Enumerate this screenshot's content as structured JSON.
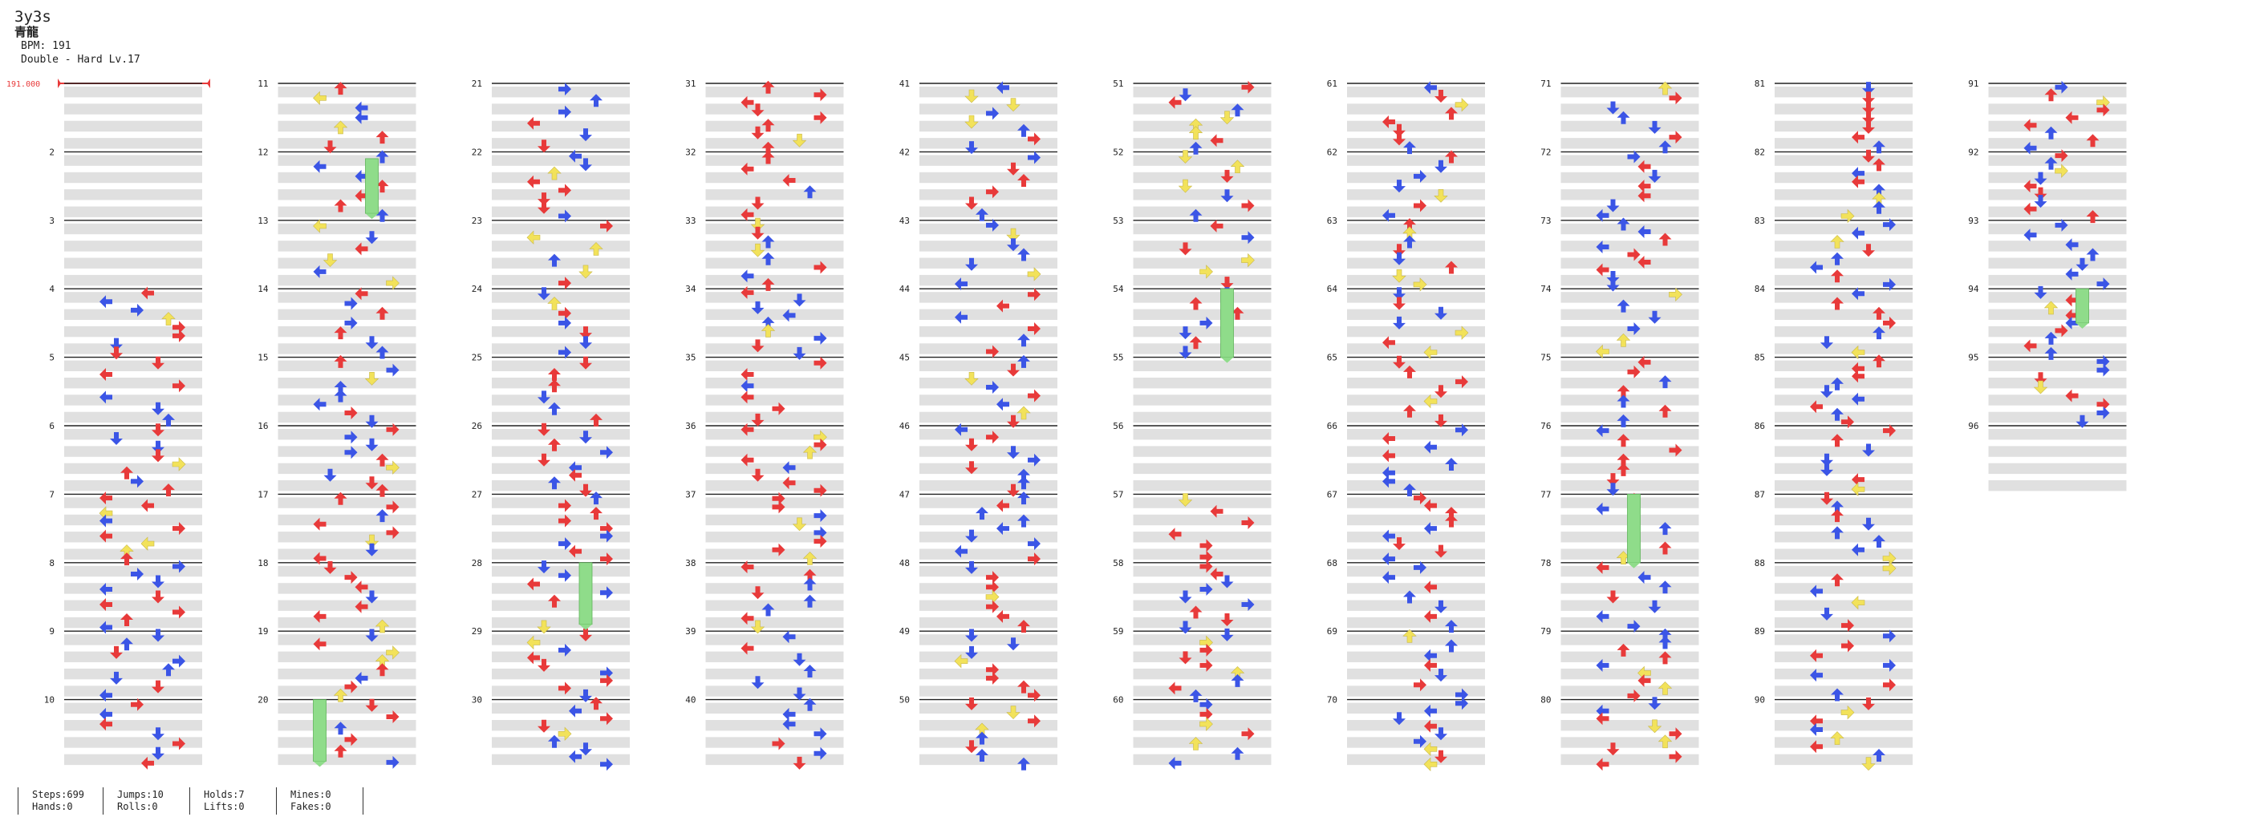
{
  "song": {
    "title": "3y3s",
    "artist": "青龍",
    "bpm_text": "BPM: 191",
    "difficulty_text": "Double - Hard Lv.17"
  },
  "bpm_marker": "191.000",
  "measures": {
    "count": 96,
    "columns": 10,
    "per_column": 10
  },
  "colors": {
    "red": "#e83a3a",
    "blue": "#3b55e6",
    "yellow": "#f2e25a",
    "hold": "#8fdc8a",
    "lane_band": "#e0e0e0",
    "measure_line": "#222222"
  },
  "stats": [
    {
      "top": "Steps:699",
      "bottom": "Hands:0"
    },
    {
      "top": "Jumps:10",
      "bottom": "Rolls:0"
    },
    {
      "top": "Holds:7",
      "bottom": "Lifts:0"
    },
    {
      "top": "Mines:0",
      "bottom": "Fakes:0"
    }
  ]
}
